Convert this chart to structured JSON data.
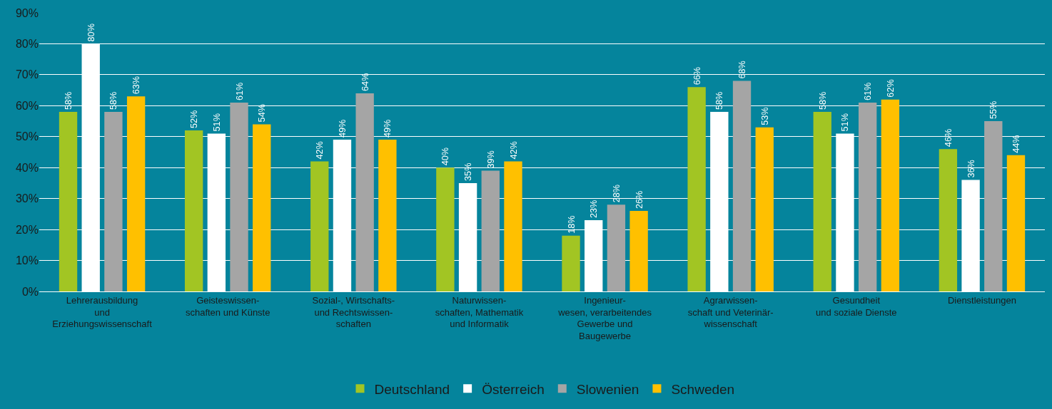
{
  "chart_data": {
    "type": "bar",
    "categories": [
      "Lehrerausbildung\nund\nErziehungswissenschaft",
      "Geisteswissen-\nschaften und Künste",
      "Sozial-, Wirtschafts-\nund Rechtswissen-\nschaften",
      "Naturwissen-\nschaften, Mathematik\nund Informatik",
      "Ingenieur-\nwesen, verarbeitendes\nGewerbe und\nBaugewerbe",
      "Agrarwissen-\nschaft und Veterinär-\nwissenschaft",
      "Gesundheit\nund soziale Dienste",
      "Dienstleistungen"
    ],
    "series": [
      {
        "name": "Deutschland",
        "color": "#a2c523",
        "values": [
          58,
          52,
          42,
          40,
          18,
          66,
          58,
          46
        ],
        "value_labels": [
          "58%",
          "52%",
          "42%",
          "40%",
          "18%",
          "66%",
          "58%",
          "46%"
        ]
      },
      {
        "name": "Österreich",
        "color": "#ffffff",
        "values": [
          80,
          51,
          49,
          35,
          23,
          58,
          51,
          36
        ],
        "value_labels": [
          "80%",
          "51%",
          "49%",
          "35%",
          "23%",
          "58%",
          "51%",
          "36%"
        ]
      },
      {
        "name": "Slowenien",
        "color": "#a5a5a5",
        "values": [
          58,
          61,
          64,
          39,
          28,
          68,
          61,
          55
        ],
        "value_labels": [
          "58%",
          "61%",
          "64%",
          "39%",
          "28%",
          "68%",
          "61%",
          "55%"
        ]
      },
      {
        "name": "Schweden",
        "color": "#ffc000",
        "values": [
          63,
          54,
          49,
          42,
          26,
          53,
          62,
          44
        ],
        "value_labels": [
          "63%",
          "54%",
          "49%",
          "42%",
          "26%",
          "53%",
          "62%",
          "44%"
        ]
      }
    ],
    "ylim": [
      0,
      90
    ],
    "yticks": [
      {
        "value": 0,
        "label": "0%"
      },
      {
        "value": 10,
        "label": "10%"
      },
      {
        "value": 20,
        "label": "20%"
      },
      {
        "value": 30,
        "label": "30%"
      },
      {
        "value": 40,
        "label": "40%"
      },
      {
        "value": 50,
        "label": "50%"
      },
      {
        "value": 60,
        "label": "60%"
      },
      {
        "value": 70,
        "label": "70%"
      },
      {
        "value": 80,
        "label": "80%"
      },
      {
        "value": 90,
        "label": "90%"
      }
    ],
    "grid": "y",
    "legend": "bottom"
  }
}
